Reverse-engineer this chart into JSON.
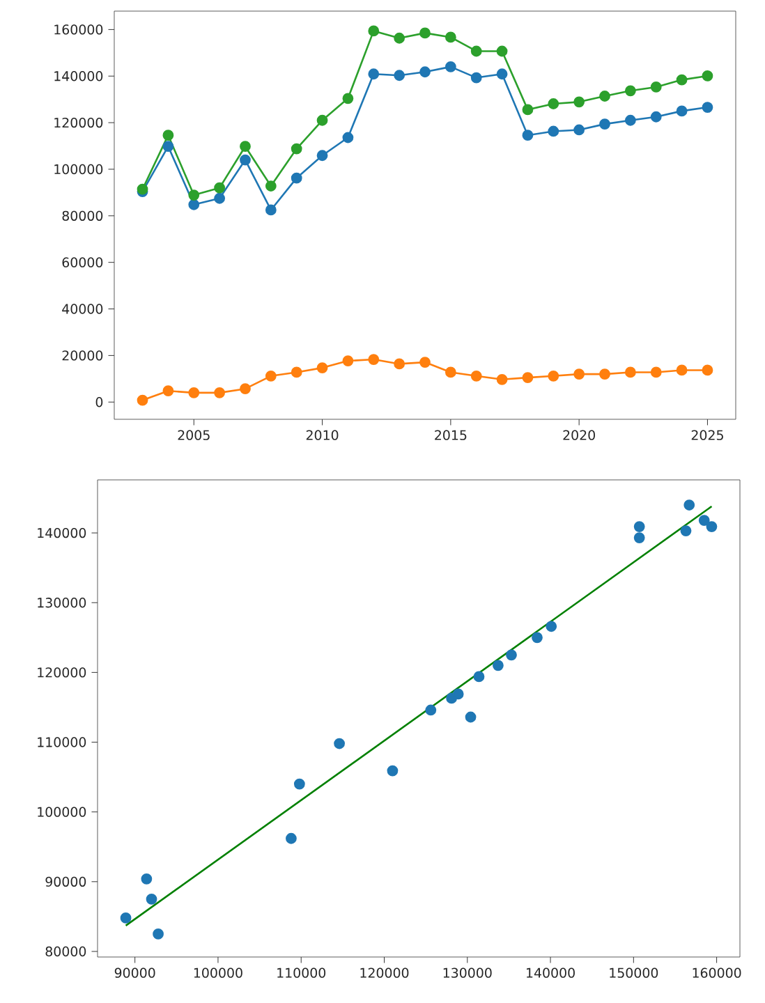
{
  "chart_data": [
    {
      "type": "line",
      "marker": "circle",
      "x": [
        2003,
        2004,
        2005,
        2006,
        2007,
        2008,
        2009,
        2010,
        2011,
        2012,
        2013,
        2014,
        2015,
        2016,
        2017,
        2018,
        2019,
        2020,
        2021,
        2022,
        2023,
        2024,
        2025
      ],
      "xlim": [
        2001.9,
        2026.1
      ],
      "xticks": [
        2005,
        2010,
        2015,
        2020,
        2025
      ],
      "ylim": [
        -7400,
        167900
      ],
      "yticks": [
        0,
        20000,
        40000,
        60000,
        80000,
        100000,
        120000,
        140000,
        160000
      ],
      "series": [
        {
          "color": "#1f77b4",
          "values": [
            90400,
            109800,
            84800,
            87500,
            104000,
            82500,
            96200,
            105900,
            113600,
            140900,
            140300,
            141800,
            144000,
            139300,
            140900,
            114600,
            116300,
            116900,
            119400,
            121000,
            122500,
            125000,
            126600
          ]
        },
        {
          "color": "#ff7f0e",
          "values": [
            800,
            4800,
            4000,
            4000,
            5700,
            11200,
            12800,
            14700,
            17700,
            18300,
            16400,
            17100,
            12800,
            11200,
            9700,
            10500,
            11200,
            12000,
            12000,
            12800,
            12800,
            13700,
            13700
          ]
        },
        {
          "color": "#2ca02c",
          "values": [
            91400,
            114600,
            88900,
            92000,
            109800,
            92800,
            108800,
            121000,
            130400,
            159400,
            156300,
            158500,
            156700,
            150700,
            150700,
            125600,
            128100,
            128900,
            131400,
            133700,
            135300,
            138400,
            140100
          ]
        }
      ]
    },
    {
      "type": "scatter",
      "marker": "circle",
      "xlim": [
        85500,
        162800
      ],
      "xticks": [
        90000,
        100000,
        110000,
        120000,
        130000,
        140000,
        150000,
        160000
      ],
      "ylim": [
        79200,
        147600
      ],
      "yticks": [
        80000,
        90000,
        100000,
        110000,
        120000,
        130000,
        140000
      ],
      "series": [
        {
          "color": "#1f77b4",
          "x": [
            91400,
            114600,
            88900,
            92000,
            109800,
            92800,
            108800,
            121000,
            130400,
            159400,
            156300,
            158500,
            156700,
            150700,
            150700,
            125600,
            128100,
            128900,
            131400,
            133700,
            135300,
            138400,
            140100
          ],
          "values": [
            90400,
            109800,
            84800,
            87500,
            104000,
            82500,
            96200,
            105900,
            113600,
            140900,
            140300,
            141800,
            144000,
            139300,
            140900,
            114600,
            116300,
            116900,
            119400,
            121000,
            122500,
            125000,
            126600
          ]
        },
        {
          "type": "line",
          "marker": "none",
          "color": "#008000",
          "x": [
            88900,
            159400
          ],
          "values": [
            83700,
            143800
          ]
        }
      ]
    }
  ]
}
